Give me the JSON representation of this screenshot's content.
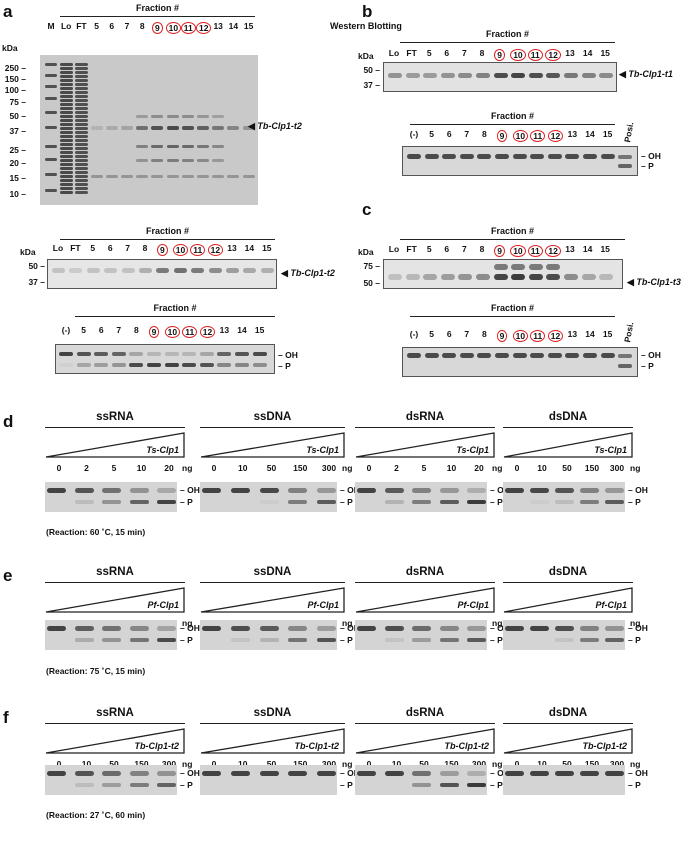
{
  "panel_a": {
    "letter": "a",
    "fraction_title": "Fraction #",
    "lanes": [
      "M",
      "Lo",
      "FT",
      "5",
      "6",
      "7",
      "8",
      "9",
      "10",
      "11",
      "12",
      "13",
      "14",
      "15"
    ],
    "circled": [
      "9",
      "10",
      "11",
      "12"
    ],
    "kda": "kDa",
    "markers": [
      "250",
      "150",
      "100",
      "75",
      "50",
      "37",
      "25",
      "20",
      "15",
      "10"
    ],
    "arrow_label": "Tb-Clp1-t2",
    "wb_lanes": [
      "Lo",
      "FT",
      "5",
      "6",
      "7",
      "8",
      "9",
      "10",
      "11",
      "12",
      "13",
      "14",
      "15"
    ],
    "wb_markers": [
      "50",
      "37"
    ],
    "wb_label": "Tb-Clp1-t2",
    "assay_lanes": [
      "(-)",
      "5",
      "6",
      "7",
      "8",
      "9",
      "10",
      "11",
      "12",
      "13",
      "14",
      "15"
    ],
    "oh": "OH",
    "p": "P"
  },
  "panel_b": {
    "letter": "b",
    "title": "Western Blotting",
    "fraction_title": "Fraction #",
    "kda": "kDa",
    "markers": [
      "50",
      "37"
    ],
    "lanes": [
      "Lo",
      "FT",
      "5",
      "6",
      "7",
      "8",
      "9",
      "10",
      "11",
      "12",
      "13",
      "14",
      "15"
    ],
    "arrow_label": "Tb-Clp1-t1",
    "assay_lanes": [
      "(-)",
      "5",
      "6",
      "7",
      "8",
      "9",
      "10",
      "11",
      "12",
      "13",
      "14",
      "15",
      "Posi."
    ],
    "oh": "OH",
    "p": "P"
  },
  "panel_c": {
    "letter": "c",
    "fraction_title": "Fraction #",
    "kda": "kDa",
    "markers": [
      "75",
      "50"
    ],
    "lanes": [
      "Lo",
      "FT",
      "5",
      "6",
      "7",
      "8",
      "9",
      "10",
      "11",
      "12",
      "13",
      "14",
      "15"
    ],
    "arrow_label": "Tb-Clp1-t3",
    "assay_lanes": [
      "(-)",
      "5",
      "6",
      "7",
      "8",
      "9",
      "10",
      "11",
      "12",
      "13",
      "14",
      "15",
      "Posi."
    ],
    "oh": "OH",
    "p": "P"
  },
  "panel_d": {
    "letter": "d",
    "enzyme": "Ts-Clp1",
    "reaction": "(Reaction: 60 ˚C, 15 min)",
    "blocks": [
      {
        "title": "ssRNA",
        "amounts": [
          "0",
          "2",
          "5",
          "10",
          "20"
        ]
      },
      {
        "title": "ssDNA",
        "amounts": [
          "0",
          "10",
          "50",
          "150",
          "300"
        ]
      },
      {
        "title": "dsRNA",
        "amounts": [
          "0",
          "2",
          "5",
          "10",
          "20"
        ]
      },
      {
        "title": "dsDNA",
        "amounts": [
          "0",
          "10",
          "50",
          "150",
          "300"
        ]
      }
    ]
  },
  "panel_e": {
    "letter": "e",
    "enzyme": "Pf-Clp1",
    "reaction": "(Reaction: 75 ˚C, 15 min)",
    "blocks": [
      {
        "title": "ssRNA",
        "amounts": [
          "0",
          "2",
          "5",
          "10",
          "20"
        ]
      },
      {
        "title": "ssDNA",
        "amounts": [
          "0",
          "10",
          "50",
          "150",
          "300"
        ]
      },
      {
        "title": "dsRNA",
        "amounts": [
          "0",
          "5",
          "10",
          "20",
          "50"
        ]
      },
      {
        "title": "dsDNA",
        "amounts": [
          "0",
          "10",
          "50",
          "150",
          "300"
        ]
      }
    ]
  },
  "panel_f": {
    "letter": "f",
    "enzyme": "Tb-Clp1-t2",
    "reaction": "(Reaction: 27 ˚C, 60 min)",
    "blocks": [
      {
        "title": "ssRNA",
        "amounts": [
          "0",
          "10",
          "50",
          "150",
          "300"
        ]
      },
      {
        "title": "ssDNA",
        "amounts": [
          "0",
          "10",
          "50",
          "150",
          "300"
        ]
      },
      {
        "title": "dsRNA",
        "amounts": [
          "0",
          "10",
          "50",
          "150",
          "300"
        ]
      },
      {
        "title": "dsDNA",
        "amounts": [
          "0",
          "10",
          "50",
          "150",
          "300"
        ]
      }
    ]
  },
  "common": {
    "ng": "ng",
    "oh": "OH",
    "p": "P"
  }
}
